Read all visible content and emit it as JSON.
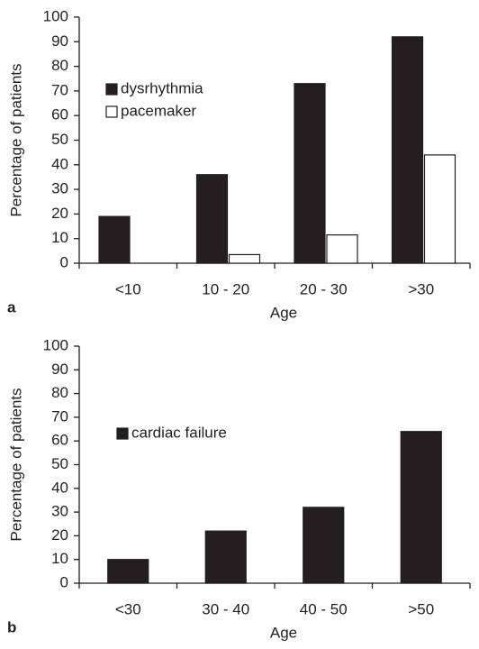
{
  "chart_data": [
    {
      "type": "bar",
      "panel": "a",
      "xlabel": "Age",
      "ylabel": "Percentage of patients",
      "categories": [
        "<10",
        "10 - 20",
        "20 - 30",
        ">30"
      ],
      "series": [
        {
          "name": "dysrhythmia",
          "color": "#231f20",
          "values": [
            19,
            36,
            73,
            92
          ]
        },
        {
          "name": "pacemaker",
          "color": "#ffffff",
          "values": [
            0,
            3.5,
            11.5,
            44
          ]
        }
      ],
      "ylim": [
        0,
        100
      ],
      "yticks": [
        0,
        10,
        20,
        30,
        40,
        50,
        60,
        70,
        80,
        90,
        100
      ],
      "legend": "upper left"
    },
    {
      "type": "bar",
      "panel": "b",
      "xlabel": "Age",
      "ylabel": "Percentage of patients",
      "categories": [
        "<30",
        "30 - 40",
        "40 - 50",
        ">50"
      ],
      "series": [
        {
          "name": "cardiac failure",
          "color": "#231f20",
          "values": [
            10,
            22,
            32,
            64
          ]
        }
      ],
      "ylim": [
        0,
        100
      ],
      "yticks": [
        0,
        10,
        20,
        30,
        40,
        50,
        60,
        70,
        80,
        90,
        100
      ],
      "legend": "upper left"
    }
  ]
}
